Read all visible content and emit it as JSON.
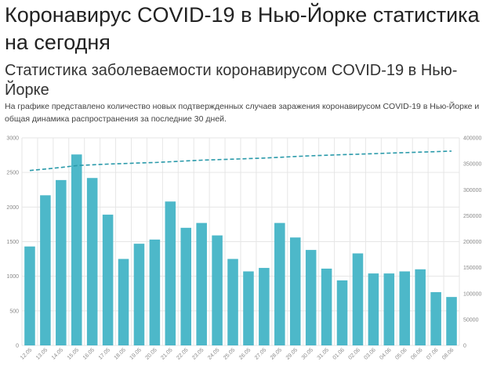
{
  "page": {
    "title": "Коронавирус COVID-19 в Нью-Йорке статистика на сегодня",
    "subtitle": "Статистика заболеваемости коронавирусом COVID-19 в Нью-Йорке",
    "description": "На графике представлено количество новых подтвержденных случаев заражения коронавирусом COVID-19 в Нью-Йорке и общая динамика распространения за последние 30 дней."
  },
  "colors": {
    "bar": "#4db8c9",
    "line": "#2a9aaa",
    "grid": "#e6e6e6",
    "tick": "#888888"
  },
  "chart_data": {
    "type": "bar",
    "categories": [
      "12.05",
      "13.05",
      "14.05",
      "15.05",
      "16.05",
      "17.05",
      "18.05",
      "19.05",
      "20.05",
      "21.05",
      "22.05",
      "23.05",
      "24.05",
      "25.05",
      "26.05",
      "27.05",
      "28.05",
      "29.05",
      "30.05",
      "31.05",
      "01.06",
      "02.06",
      "03.06",
      "04.06",
      "05.06",
      "06.06",
      "07.06",
      "08.06"
    ],
    "series": [
      {
        "type": "bar",
        "axis": "left",
        "values": [
          1430,
          2170,
          2390,
          2760,
          2420,
          1890,
          1250,
          1470,
          1530,
          2080,
          1700,
          1770,
          1590,
          1250,
          1070,
          1120,
          1770,
          1560,
          1380,
          1110,
          940,
          1330,
          1040,
          1040,
          1070,
          1100,
          770,
          700
        ]
      },
      {
        "type": "line",
        "style": "dashed",
        "axis": "right",
        "values": [
          337000,
          340000,
          343000,
          346500,
          348000,
          349500,
          350500,
          351500,
          352500,
          354000,
          355500,
          357000,
          358000,
          359000,
          360000,
          361000,
          362500,
          364000,
          365500,
          366500,
          367500,
          368500,
          369500,
          370500,
          371500,
          372500,
          373500,
          374500
        ]
      }
    ],
    "y_left": {
      "range": [
        0,
        3000
      ],
      "ticks": [
        "0",
        "500",
        "1000",
        "1500",
        "2000",
        "2500",
        "3000"
      ]
    },
    "y_right": {
      "range": [
        0,
        400000
      ],
      "ticks": [
        "0",
        "50000",
        "100000",
        "150000",
        "200000",
        "250000",
        "300000",
        "350000",
        "400000"
      ]
    },
    "grid": true
  }
}
